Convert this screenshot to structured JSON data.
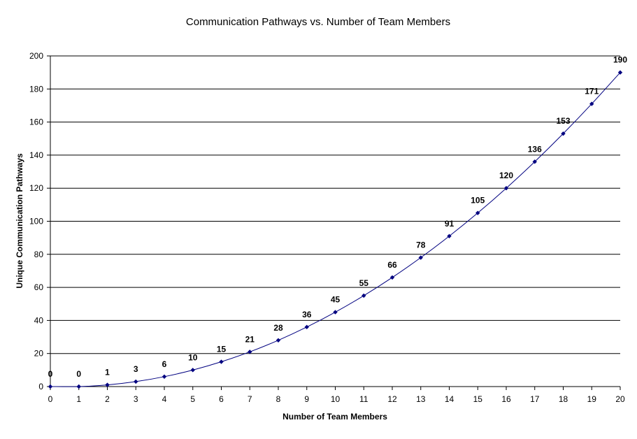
{
  "chart_data": {
    "type": "line",
    "title": "Communication Pathways vs. Number of Team Members",
    "xlabel": "Number of Team Members",
    "ylabel": "Unique Communication Pathways",
    "xlim": [
      0,
      20
    ],
    "ylim": [
      0,
      200
    ],
    "x_ticks": [
      0,
      1,
      2,
      3,
      4,
      5,
      6,
      7,
      8,
      9,
      10,
      11,
      12,
      13,
      14,
      15,
      16,
      17,
      18,
      19,
      20
    ],
    "y_ticks": [
      0,
      20,
      40,
      60,
      80,
      100,
      120,
      140,
      160,
      180,
      200
    ],
    "grid": "horizontal",
    "legend": "none",
    "line_color": "#000080",
    "marker": "diamond",
    "x": [
      0,
      1,
      2,
      3,
      4,
      5,
      6,
      7,
      8,
      9,
      10,
      11,
      12,
      13,
      14,
      15,
      16,
      17,
      18,
      19,
      20
    ],
    "series": [
      {
        "values": [
          0,
          0,
          1,
          3,
          6,
          10,
          15,
          21,
          28,
          36,
          45,
          55,
          66,
          78,
          91,
          105,
          120,
          136,
          153,
          171,
          190
        ]
      }
    ]
  }
}
